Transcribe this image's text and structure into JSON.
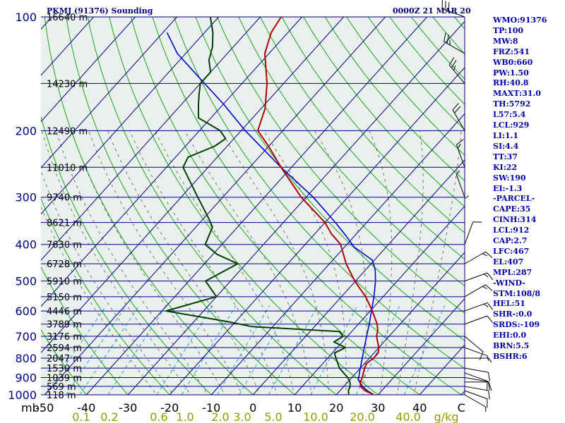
{
  "header": {
    "station_title": "PKMJ (91376) Sounding",
    "valid_time": "0000Z 21 MAR 20"
  },
  "colors": {
    "plot_background": "#e9f0ee",
    "isobar": "#00008b",
    "isotherm": "#00008b",
    "dry_adiabat": "#18a818",
    "moist_adiabat": "#7a7a64",
    "mixing_ratio": "#2aa0e0",
    "temperature": "#b00000",
    "dewpoint": "#004000",
    "parcel": "#0000cc",
    "wind_barb": "#000000",
    "index_text": "#0000aa",
    "mixing_ratio_label": "#999900"
  },
  "indices": [
    "WMO:91376",
    "TP:100",
    "MW:8",
    "FRZ:541",
    "WB0:660",
    "PW:1.50",
    "RH:40.8",
    "MAXT:31.0",
    "TH:5792",
    "L57:5.4",
    "LCL:929",
    "LI:1.1",
    "SI:4.4",
    "TT:37",
    "KI:22",
    "SW:190",
    "EI:-1.3",
    "-PARCEL-",
    "CAPE:35",
    "CINH:314",
    "LCL:912",
    "CAP:2.7",
    "LFC:467",
    "EL:407",
    "MPL:287",
    "-WIND-",
    "STM:108/8",
    "HEL:51",
    "SHR-:0.0",
    "SRDS:-109",
    "EHI:0.0",
    "BRN:5.5",
    "BSHR:6"
  ],
  "chart_data": {
    "type": "skew-t log-p sounding",
    "pressure_range_mb": [
      1000,
      100
    ],
    "temperature_range_c": [
      -50,
      50
    ],
    "isobars": [
      {
        "p": 100,
        "label": "100",
        "height": "16640 m"
      },
      {
        "p": 150,
        "label": "",
        "height": "14230 m"
      },
      {
        "p": 200,
        "label": "200",
        "height": "12490 m"
      },
      {
        "p": 250,
        "label": "",
        "height": "11010 m"
      },
      {
        "p": 300,
        "label": "300",
        "height": "9740 m"
      },
      {
        "p": 350,
        "label": "",
        "height": "8621 m"
      },
      {
        "p": 400,
        "label": "400",
        "height": "7630 m"
      },
      {
        "p": 450,
        "label": "",
        "height": "6728 m"
      },
      {
        "p": 500,
        "label": "500",
        "height": "5910 m"
      },
      {
        "p": 550,
        "label": "",
        "height": "5150 m"
      },
      {
        "p": 600,
        "label": "600",
        "height": "4446 m"
      },
      {
        "p": 650,
        "label": "",
        "height": "3789 m"
      },
      {
        "p": 700,
        "label": "700",
        "height": "3176 m"
      },
      {
        "p": 750,
        "label": "",
        "height": "2594 m"
      },
      {
        "p": 800,
        "label": "800",
        "height": "2047 m"
      },
      {
        "p": 850,
        "label": "",
        "height": "1530 m"
      },
      {
        "p": 900,
        "label": "900",
        "height": "1039 m"
      },
      {
        "p": 950,
        "label": "",
        "height": "569 m"
      },
      {
        "p": 1000,
        "label": "1000",
        "height": "118 m"
      }
    ],
    "pressure_unit": "mb",
    "temperature_ticks": [
      "-50",
      "-40",
      "-30",
      "-20",
      "-10",
      "0",
      "10",
      "20",
      "30",
      "40",
      "C"
    ],
    "mixing_ratio_ticks": [
      0.1,
      0.2,
      0.6,
      1.0,
      2.0,
      3.0,
      5.0,
      10.0,
      20.0,
      40.0
    ],
    "mixing_ratio_unit": "g/kg",
    "temperature_profile": {
      "name": "Temperature",
      "points": [
        [
          1000,
          29
        ],
        [
          975,
          26
        ],
        [
          950,
          24
        ],
        [
          925,
          23
        ],
        [
          900,
          22.5
        ],
        [
          850,
          21
        ],
        [
          825,
          20.5
        ],
        [
          800,
          21
        ],
        [
          775,
          21
        ],
        [
          750,
          20
        ],
        [
          725,
          18.5
        ],
        [
          700,
          17
        ],
        [
          675,
          16
        ],
        [
          650,
          14.5
        ],
        [
          600,
          10.5
        ],
        [
          550,
          5.8
        ],
        [
          500,
          -0.2
        ],
        [
          450,
          -6
        ],
        [
          400,
          -11.5
        ],
        [
          375,
          -16
        ],
        [
          350,
          -20
        ],
        [
          300,
          -31.2
        ],
        [
          250,
          -42.5
        ],
        [
          220,
          -50
        ],
        [
          200,
          -56
        ],
        [
          175,
          -59
        ],
        [
          150,
          -64
        ],
        [
          125,
          -71
        ],
        [
          110,
          -74
        ],
        [
          100,
          -75
        ]
      ]
    },
    "dewpoint_profile": {
      "name": "Dewpoint",
      "points": [
        [
          1000,
          23
        ],
        [
          975,
          22
        ],
        [
          950,
          21.5
        ],
        [
          925,
          20.5
        ],
        [
          900,
          19
        ],
        [
          875,
          17
        ],
        [
          850,
          15
        ],
        [
          825,
          13.5
        ],
        [
          800,
          12
        ],
        [
          775,
          10.5
        ],
        [
          750,
          12
        ],
        [
          725,
          8
        ],
        [
          700,
          9
        ],
        [
          680,
          7
        ],
        [
          660,
          -15
        ],
        [
          640,
          -22
        ],
        [
          600,
          -39
        ],
        [
          550,
          -30
        ],
        [
          500,
          -36
        ],
        [
          450,
          -32
        ],
        [
          425,
          -39
        ],
        [
          400,
          -44
        ],
        [
          360,
          -46
        ],
        [
          340,
          -49
        ],
        [
          300,
          -56
        ],
        [
          250,
          -66
        ],
        [
          235,
          -67
        ],
        [
          220,
          -63
        ],
        [
          210,
          -62
        ],
        [
          200,
          -65
        ],
        [
          185,
          -73
        ],
        [
          170,
          -76
        ],
        [
          160,
          -78
        ],
        [
          150,
          -80
        ],
        [
          140,
          -80
        ],
        [
          130,
          -83
        ],
        [
          120,
          -85
        ],
        [
          110,
          -88
        ],
        [
          100,
          -92
        ]
      ]
    },
    "parcel_profile": {
      "name": "Parcel",
      "points": [
        [
          1000,
          29
        ],
        [
          975,
          26.5
        ],
        [
          950,
          24.5
        ],
        [
          925,
          22.8
        ],
        [
          912,
          22
        ],
        [
          850,
          20
        ],
        [
          800,
          18.3
        ],
        [
          750,
          16.5
        ],
        [
          700,
          14.6
        ],
        [
          650,
          12.6
        ],
        [
          600,
          10.3
        ],
        [
          550,
          7.8
        ],
        [
          500,
          4.8
        ],
        [
          467,
          2.3
        ],
        [
          440,
          -0.5
        ],
        [
          407,
          -7.6
        ],
        [
          380,
          -12
        ],
        [
          350,
          -17.5
        ],
        [
          300,
          -28.3
        ],
        [
          250,
          -42.5
        ],
        [
          200,
          -59
        ],
        [
          170,
          -70
        ],
        [
          150,
          -79
        ],
        [
          125,
          -92
        ],
        [
          110,
          -99
        ]
      ]
    },
    "wind_barbs": [
      {
        "p": 1000,
        "dir": 120,
        "kt": 5
      },
      {
        "p": 975,
        "dir": 110,
        "kt": 10
      },
      {
        "p": 950,
        "dir": 100,
        "kt": 10
      },
      {
        "p": 925,
        "dir": 90,
        "kt": 10
      },
      {
        "p": 900,
        "dir": 100,
        "kt": 10
      },
      {
        "p": 875,
        "dir": 110,
        "kt": 10
      },
      {
        "p": 850,
        "dir": 100,
        "kt": 10
      },
      {
        "p": 800,
        "dir": 90,
        "kt": 5
      },
      {
        "p": 750,
        "dir": 110,
        "kt": 5
      },
      {
        "p": 700,
        "dir": 130,
        "kt": 10
      },
      {
        "p": 650,
        "dir": 70,
        "kt": 10
      },
      {
        "p": 600,
        "dir": 70,
        "kt": 15
      },
      {
        "p": 550,
        "dir": 60,
        "kt": 15
      },
      {
        "p": 500,
        "dir": 70,
        "kt": 15
      },
      {
        "p": 450,
        "dir": 60,
        "kt": 15
      },
      {
        "p": 400,
        "dir": 20,
        "kt": 10
      },
      {
        "p": 350,
        "dir": 360,
        "kt": 5
      },
      {
        "p": 300,
        "dir": 340,
        "kt": 5
      },
      {
        "p": 250,
        "dir": 340,
        "kt": 15
      },
      {
        "p": 200,
        "dir": 330,
        "kt": 20
      },
      {
        "p": 150,
        "dir": 320,
        "kt": 25
      },
      {
        "p": 125,
        "dir": 300,
        "kt": 25
      },
      {
        "p": 100,
        "dir": 290,
        "kt": 30
      }
    ]
  }
}
